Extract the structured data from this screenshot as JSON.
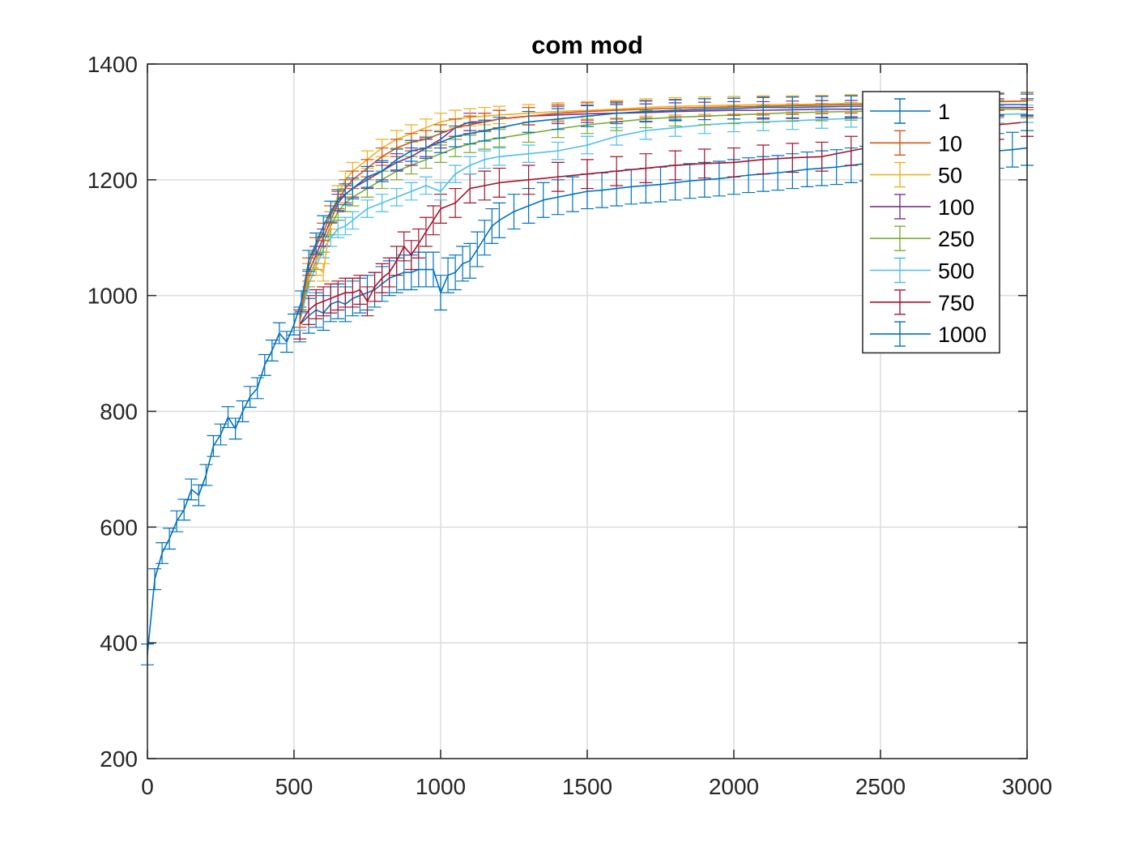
{
  "chart_data": {
    "type": "line",
    "title": "com mod",
    "xlabel": "",
    "ylabel": "",
    "xlim": [
      0,
      3000
    ],
    "ylim": [
      200,
      1400
    ],
    "xticks": [
      0,
      500,
      1000,
      1500,
      2000,
      2500,
      3000
    ],
    "yticks": [
      200,
      400,
      600,
      800,
      1000,
      1200,
      1400
    ],
    "grid": true,
    "legend_position": "top-right",
    "error_bars": true,
    "colors": {
      "1": "#0072bd",
      "10": "#d95319",
      "50": "#edb120",
      "100": "#7e2f8e",
      "250": "#77ac30",
      "500": "#4dbeee",
      "750": "#a2142f",
      "1000": "#0072bd"
    },
    "series": [
      {
        "name": "1",
        "x": [
          0,
          25,
          50,
          75,
          100,
          125,
          150,
          175,
          200,
          225,
          250,
          275,
          300,
          325,
          350,
          375,
          400,
          425,
          450,
          475,
          500,
          525,
          550,
          575,
          600,
          625,
          650,
          675,
          700,
          750,
          800,
          850,
          900,
          950,
          1000,
          1050,
          1100,
          1150,
          1200,
          1300,
          1400,
          1500,
          1600,
          1700,
          1800,
          1900,
          2000,
          2100,
          2200,
          2300,
          2400,
          2500,
          2600,
          2700,
          2800,
          2900,
          3000
        ],
        "y": [
          380,
          510,
          555,
          580,
          610,
          630,
          665,
          655,
          690,
          740,
          760,
          790,
          770,
          800,
          825,
          840,
          880,
          905,
          935,
          920,
          950,
          990,
          1060,
          1090,
          1120,
          1145,
          1165,
          1175,
          1185,
          1205,
          1215,
          1235,
          1250,
          1255,
          1265,
          1275,
          1280,
          1285,
          1290,
          1300,
          1305,
          1310,
          1315,
          1318,
          1320,
          1322,
          1323,
          1325,
          1325,
          1326,
          1327,
          1327,
          1328,
          1328,
          1329,
          1330,
          1330
        ],
        "err": [
          18,
          18,
          18,
          18,
          18,
          18,
          18,
          18,
          18,
          18,
          18,
          18,
          18,
          18,
          18,
          18,
          18,
          18,
          18,
          18,
          18,
          18,
          18,
          18,
          18,
          18,
          18,
          18,
          18,
          18,
          18,
          18,
          18,
          18,
          18,
          18,
          18,
          18,
          18,
          18,
          18,
          18,
          18,
          18,
          18,
          18,
          18,
          18,
          18,
          18,
          18,
          18,
          18,
          18,
          18,
          18,
          18
        ]
      },
      {
        "name": "10",
        "x": [
          520,
          550,
          575,
          600,
          625,
          650,
          675,
          700,
          750,
          800,
          850,
          900,
          950,
          1000,
          1050,
          1100,
          1150,
          1200,
          1300,
          1400,
          1500,
          1600,
          1700,
          1800,
          1900,
          2000,
          2100,
          2200,
          2300,
          2400,
          2500,
          2600,
          2700,
          2800,
          2900,
          3000
        ],
        "y": [
          960,
          1050,
          1085,
          1110,
          1140,
          1165,
          1185,
          1200,
          1220,
          1240,
          1255,
          1265,
          1270,
          1280,
          1290,
          1295,
          1300,
          1305,
          1310,
          1315,
          1318,
          1320,
          1322,
          1324,
          1325,
          1326,
          1327,
          1328,
          1329,
          1330,
          1331,
          1332,
          1333,
          1334,
          1335,
          1336
        ],
        "err": [
          15,
          15,
          15,
          15,
          15,
          15,
          15,
          15,
          15,
          15,
          15,
          15,
          15,
          15,
          15,
          15,
          15,
          15,
          15,
          15,
          15,
          15,
          15,
          15,
          15,
          15,
          15,
          15,
          15,
          15,
          15,
          15,
          15,
          15,
          15,
          15
        ]
      },
      {
        "name": "50",
        "x": [
          520,
          550,
          575,
          600,
          625,
          650,
          675,
          700,
          750,
          800,
          850,
          900,
          950,
          1000,
          1050,
          1100,
          1150,
          1200,
          1300,
          1400,
          1500,
          1600,
          1700,
          1800,
          1900,
          2000,
          2100,
          2200,
          2300,
          2400,
          2500,
          2600,
          2700,
          2800,
          2900,
          3000
        ],
        "y": [
          960,
          1040,
          1050,
          1040,
          1130,
          1175,
          1200,
          1215,
          1235,
          1255,
          1270,
          1280,
          1290,
          1300,
          1305,
          1308,
          1310,
          1312,
          1315,
          1318,
          1320,
          1322,
          1325,
          1327,
          1328,
          1329,
          1330,
          1330,
          1331,
          1332,
          1332,
          1333,
          1334,
          1334,
          1335,
          1336
        ],
        "err": [
          15,
          15,
          15,
          15,
          15,
          15,
          15,
          15,
          15,
          15,
          15,
          15,
          15,
          15,
          15,
          15,
          15,
          15,
          15,
          15,
          15,
          15,
          15,
          15,
          15,
          15,
          15,
          15,
          15,
          15,
          15,
          15,
          15,
          15,
          15,
          15
        ]
      },
      {
        "name": "100",
        "x": [
          520,
          550,
          575,
          600,
          625,
          650,
          675,
          700,
          750,
          800,
          850,
          900,
          950,
          1000,
          1050,
          1100,
          1150,
          1200,
          1300,
          1400,
          1500,
          1600,
          1700,
          1800,
          1900,
          2000,
          2100,
          2200,
          2300,
          2400,
          2500,
          2600,
          2700,
          2800,
          2900,
          3000
        ],
        "y": [
          960,
          1040,
          1070,
          1100,
          1130,
          1160,
          1175,
          1185,
          1200,
          1215,
          1230,
          1240,
          1255,
          1270,
          1290,
          1300,
          1300,
          1305,
          1310,
          1312,
          1314,
          1315,
          1316,
          1318,
          1319,
          1320,
          1320,
          1321,
          1322,
          1322,
          1323,
          1323,
          1324,
          1324,
          1325,
          1325
        ],
        "err": [
          15,
          15,
          15,
          15,
          15,
          15,
          15,
          15,
          15,
          15,
          15,
          15,
          15,
          15,
          15,
          15,
          15,
          15,
          15,
          15,
          15,
          15,
          15,
          15,
          15,
          15,
          15,
          15,
          15,
          15,
          15,
          15,
          15,
          15,
          15,
          15
        ]
      },
      {
        "name": "250",
        "x": [
          520,
          550,
          575,
          600,
          625,
          650,
          675,
          700,
          750,
          800,
          850,
          900,
          950,
          1000,
          1050,
          1100,
          1150,
          1200,
          1300,
          1400,
          1500,
          1600,
          1700,
          1800,
          1900,
          2000,
          2100,
          2200,
          2300,
          2400,
          2500,
          2600,
          2700,
          2800,
          2900,
          3000
        ],
        "y": [
          960,
          1030,
          1060,
          1090,
          1120,
          1145,
          1160,
          1170,
          1185,
          1200,
          1215,
          1225,
          1235,
          1245,
          1255,
          1262,
          1268,
          1272,
          1280,
          1288,
          1295,
          1300,
          1305,
          1308,
          1310,
          1312,
          1314,
          1316,
          1317,
          1318,
          1319,
          1320,
          1320,
          1321,
          1322,
          1322
        ],
        "err": [
          15,
          15,
          15,
          15,
          15,
          15,
          15,
          15,
          15,
          15,
          15,
          15,
          15,
          15,
          15,
          15,
          15,
          15,
          15,
          15,
          15,
          15,
          15,
          15,
          15,
          15,
          15,
          15,
          15,
          15,
          15,
          15,
          15,
          15,
          15,
          15
        ]
      },
      {
        "name": "500",
        "x": [
          520,
          550,
          575,
          600,
          625,
          650,
          675,
          700,
          750,
          800,
          850,
          900,
          950,
          1000,
          1050,
          1100,
          1150,
          1200,
          1300,
          1400,
          1500,
          1600,
          1700,
          1800,
          1900,
          2000,
          2100,
          2200,
          2300,
          2400,
          2500,
          2600,
          2700,
          2800,
          2900,
          3000
        ],
        "y": [
          955,
          1020,
          1050,
          1080,
          1100,
          1115,
          1120,
          1130,
          1150,
          1160,
          1170,
          1180,
          1190,
          1180,
          1210,
          1225,
          1235,
          1240,
          1245,
          1250,
          1260,
          1275,
          1285,
          1290,
          1295,
          1298,
          1300,
          1302,
          1304,
          1306,
          1308,
          1310,
          1311,
          1312,
          1313,
          1314
        ],
        "err": [
          15,
          15,
          15,
          15,
          15,
          15,
          15,
          15,
          15,
          15,
          15,
          15,
          15,
          15,
          15,
          15,
          15,
          15,
          15,
          15,
          15,
          15,
          15,
          15,
          15,
          15,
          15,
          15,
          15,
          15,
          15,
          15,
          15,
          15,
          15,
          15
        ]
      },
      {
        "name": "750",
        "x": [
          520,
          550,
          575,
          600,
          625,
          650,
          675,
          700,
          725,
          750,
          775,
          800,
          825,
          850,
          875,
          900,
          925,
          950,
          975,
          1000,
          1050,
          1100,
          1150,
          1200,
          1300,
          1400,
          1500,
          1600,
          1700,
          1800,
          1900,
          2000,
          2100,
          2200,
          2300,
          2400,
          2500,
          2600,
          2700,
          2800,
          2900,
          3000
        ],
        "y": [
          950,
          975,
          985,
          990,
          995,
          1000,
          1005,
          1005,
          1010,
          990,
          1015,
          1030,
          1040,
          1060,
          1085,
          1070,
          1090,
          1110,
          1130,
          1150,
          1160,
          1185,
          1190,
          1195,
          1200,
          1205,
          1210,
          1215,
          1220,
          1225,
          1228,
          1230,
          1235,
          1238,
          1240,
          1250,
          1260,
          1275,
          1285,
          1290,
          1295,
          1300
        ],
        "err": [
          25,
          25,
          25,
          25,
          25,
          25,
          25,
          25,
          25,
          25,
          25,
          25,
          25,
          25,
          25,
          25,
          25,
          25,
          25,
          25,
          25,
          25,
          25,
          25,
          25,
          25,
          25,
          25,
          25,
          25,
          25,
          25,
          25,
          25,
          25,
          25,
          25,
          25,
          25,
          25,
          25,
          25
        ]
      },
      {
        "name": "1000",
        "x": [
          520,
          550,
          575,
          600,
          625,
          650,
          675,
          700,
          725,
          750,
          775,
          800,
          825,
          850,
          875,
          900,
          925,
          950,
          975,
          1000,
          1025,
          1050,
          1075,
          1100,
          1125,
          1150,
          1175,
          1200,
          1250,
          1300,
          1350,
          1400,
          1450,
          1500,
          1550,
          1600,
          1650,
          1700,
          1750,
          1800,
          1850,
          1900,
          1950,
          2000,
          2050,
          2100,
          2150,
          2200,
          2250,
          2300,
          2350,
          2400,
          2450,
          2500,
          2550,
          2600,
          2650,
          2700,
          2750,
          2800,
          2850,
          2900,
          2950,
          3000
        ],
        "y": [
          950,
          965,
          975,
          970,
          985,
          990,
          985,
          995,
          1000,
          1005,
          1010,
          1020,
          1030,
          1035,
          1040,
          1040,
          1045,
          1045,
          1045,
          1005,
          1035,
          1040,
          1055,
          1060,
          1080,
          1100,
          1120,
          1130,
          1145,
          1155,
          1165,
          1170,
          1175,
          1180,
          1182,
          1185,
          1188,
          1190,
          1192,
          1195,
          1198,
          1200,
          1202,
          1205,
          1208,
          1210,
          1212,
          1215,
          1218,
          1220,
          1222,
          1225,
          1228,
          1230,
          1232,
          1235,
          1238,
          1240,
          1242,
          1245,
          1248,
          1250,
          1252,
          1255
        ],
        "err": [
          30,
          30,
          30,
          30,
          30,
          30,
          30,
          30,
          30,
          30,
          30,
          30,
          30,
          30,
          30,
          30,
          30,
          30,
          30,
          30,
          30,
          30,
          30,
          30,
          30,
          30,
          30,
          30,
          30,
          30,
          30,
          30,
          30,
          30,
          30,
          30,
          30,
          30,
          30,
          30,
          30,
          30,
          30,
          30,
          30,
          30,
          30,
          30,
          30,
          30,
          30,
          30,
          30,
          30,
          30,
          30,
          30,
          30,
          30,
          30,
          30,
          30,
          30,
          30
        ]
      }
    ]
  }
}
